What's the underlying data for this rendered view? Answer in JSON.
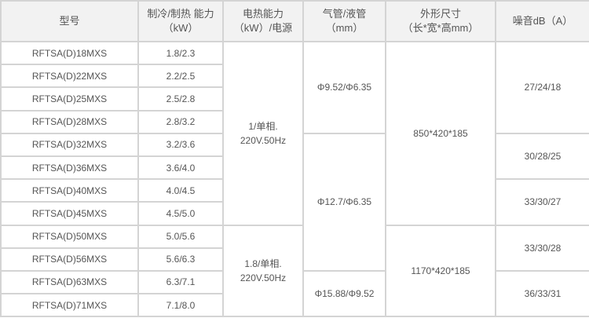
{
  "headers": [
    "型号",
    "制冷/制热 能力\n（kW）",
    "电热能力\n（kW）/电源",
    "气管/液管\n（mm）",
    "外形尺寸\n（长*宽*高mm）",
    "噪音dB（A）"
  ],
  "header_lines": [
    [
      "型号"
    ],
    [
      "制冷/制热 能力",
      "（kW）"
    ],
    [
      "电热能力",
      "（kW）/电源"
    ],
    [
      "气管/液管",
      "（mm）"
    ],
    [
      "外形尺寸",
      "（长*宽*高mm）"
    ],
    [
      "噪音dB（A）"
    ]
  ],
  "rows": [
    {
      "model": "RFTSA(D)18MXS",
      "capacity": "1.8/2.3"
    },
    {
      "model": "RFTSA(D)22MXS",
      "capacity": "2.2/2.5"
    },
    {
      "model": "RFTSA(D)25MXS",
      "capacity": "2.5/2.8"
    },
    {
      "model": "RFTSA(D)28MXS",
      "capacity": "2.8/3.2"
    },
    {
      "model": "RFTSA(D)32MXS",
      "capacity": "3.2/3.6"
    },
    {
      "model": "RFTSA(D)36MXS",
      "capacity": "3.6/4.0"
    },
    {
      "model": "RFTSA(D)40MXS",
      "capacity": "4.0/4.5"
    },
    {
      "model": "RFTSA(D)45MXS",
      "capacity": "4.5/5.0"
    },
    {
      "model": "RFTSA(D)50MXS",
      "capacity": "5.0/5.6"
    },
    {
      "model": "RFTSA(D)56MXS",
      "capacity": "5.6/6.3"
    },
    {
      "model": "RFTSA(D)63MXS",
      "capacity": "6.3/7.1"
    },
    {
      "model": "RFTSA(D)71MXS",
      "capacity": "7.1/8.0"
    }
  ],
  "electric": [
    [
      "1/单相.",
      "220V.50Hz"
    ],
    [
      "1.8/单相.",
      "220V.50Hz"
    ]
  ],
  "pipe": [
    "Φ9.52/Φ6.35",
    "Φ12.7/Φ6.35",
    "Φ15.88/Φ9.52"
  ],
  "dimensions": [
    "850*420*185",
    "1170*420*185"
  ],
  "noise": [
    "27/24/18",
    "30/28/25",
    "33/30/27",
    "33/30/28",
    "36/33/31"
  ]
}
